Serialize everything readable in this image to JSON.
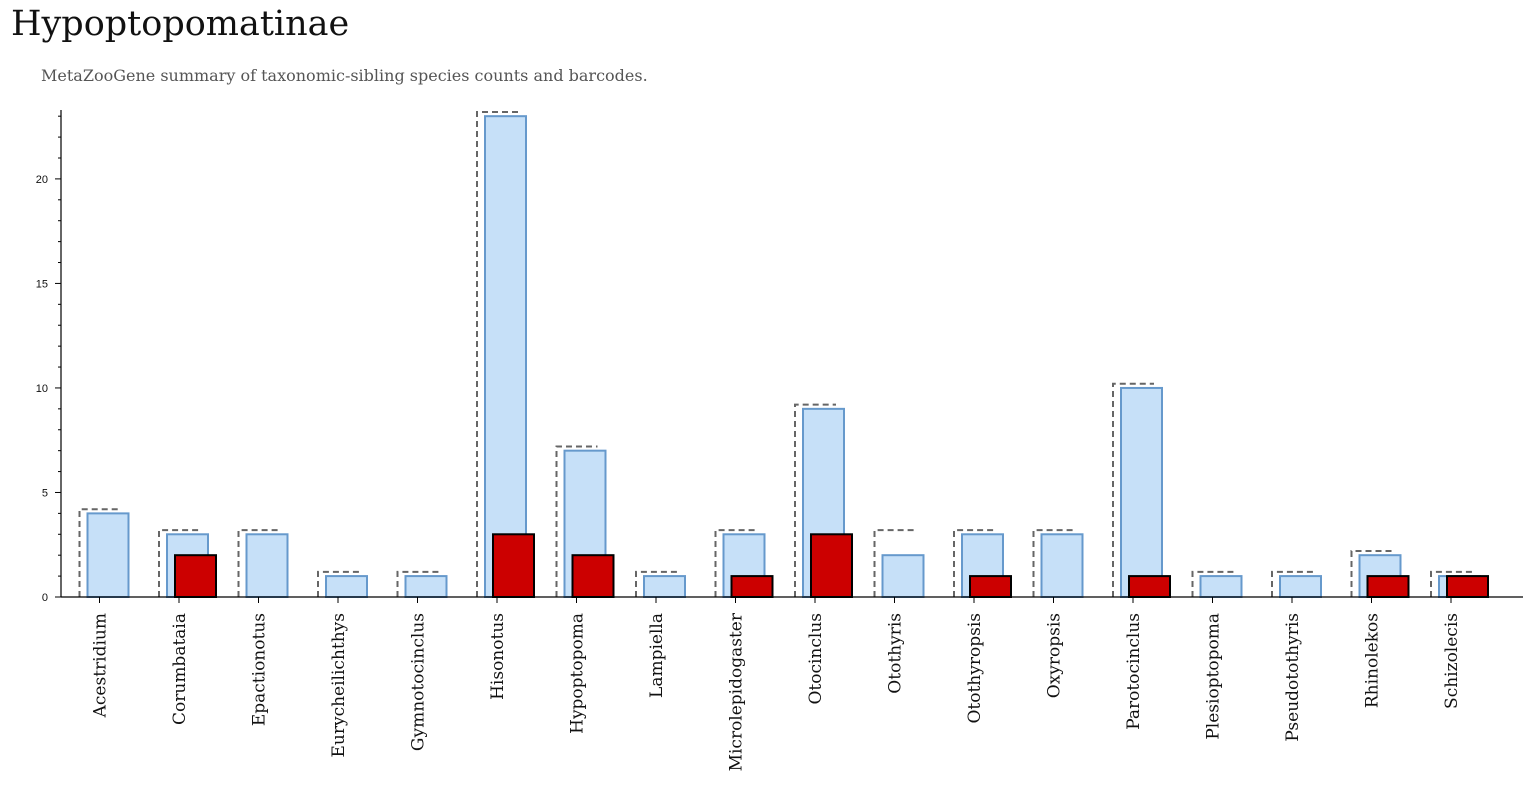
{
  "title": "Hypoptopomatinae",
  "subtitle": "MetaZooGene summary of taxonomic-sibling species counts and barcodes.",
  "colors": {
    "species_fill": "#c6e0f8",
    "species_stroke": "#6699cc",
    "barcode_fill": "#cc0000",
    "barcode_stroke": "#000000",
    "dashed_stroke": "#666666"
  },
  "chart_data": {
    "type": "bar",
    "categories": [
      "Acestridium",
      "Corumbataia",
      "Epactionotus",
      "Eurycheilichthys",
      "Gymnotocinclus",
      "Hisonotus",
      "Hypoptopoma",
      "Lampiella",
      "Microlepidogaster",
      "Otocinclus",
      "Otothyris",
      "Otothyropsis",
      "Oxyropsis",
      "Parotocinclus",
      "Plesioptopoma",
      "Pseudotothyris",
      "Rhinolekos",
      "Schizolecis"
    ],
    "series": [
      {
        "values": [
          4.2,
          3.2,
          3.2,
          1.2,
          1.2,
          23.2,
          7.2,
          1.2,
          3.2,
          9.2,
          3.2,
          3.2,
          3.2,
          10.2,
          1.2,
          1.2,
          2.2,
          1.2
        ]
      },
      {
        "values": [
          4,
          3,
          3,
          1,
          1,
          23,
          7,
          1,
          3,
          9,
          2,
          3,
          3,
          10,
          1,
          1,
          2,
          1
        ]
      },
      {
        "values": [
          0,
          2,
          0,
          0,
          0,
          3,
          2,
          0,
          1,
          3,
          0,
          1,
          0,
          1,
          0,
          0,
          1,
          1
        ]
      }
    ],
    "yticks": [
      0,
      5,
      10,
      15,
      20
    ],
    "ylim": [
      0,
      23.2
    ],
    "grid": false
  }
}
